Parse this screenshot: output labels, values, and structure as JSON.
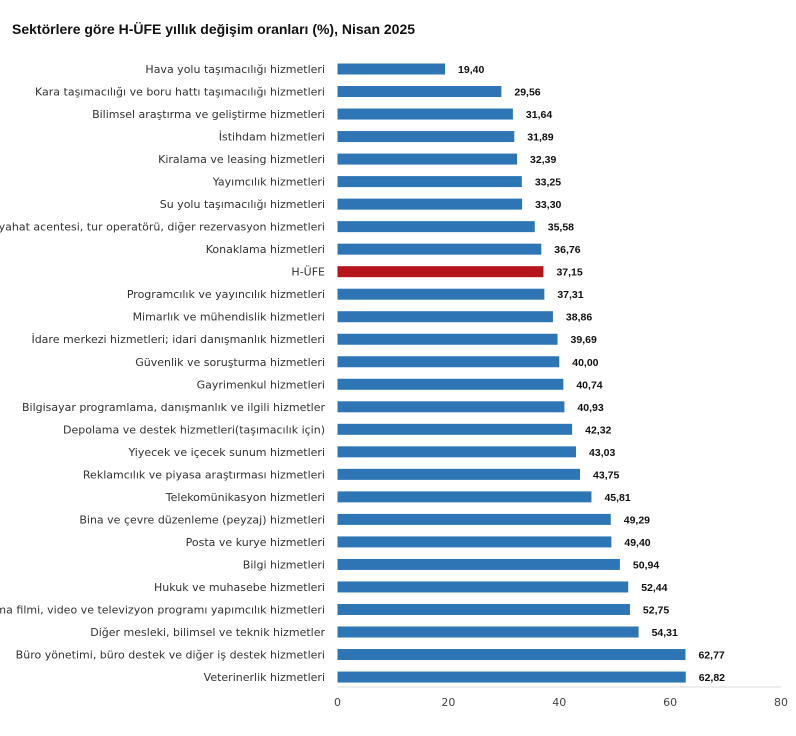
{
  "chart_data": {
    "type": "bar",
    "orientation": "horizontal",
    "title": "Sektörlere göre H-ÜFE yıllık değişim oranları (%), Nisan 2025",
    "xlabel": "",
    "ylabel": "",
    "xlim": [
      0,
      80
    ],
    "xticks": [
      "0",
      "20",
      "40",
      "60",
      "80"
    ],
    "grid": false,
    "legend": "none",
    "colors": {
      "bar": "#2e75b6",
      "highlight": "#b5151b"
    },
    "highlight_category": "H-ÜFE",
    "categories": [
      "Hava yolu taşımacılığı hizmetleri",
      "Kara taşımacılığı ve boru hattı taşımacılığı hizmetleri",
      "Bilimsel araştırma ve geliştirme hizmetleri",
      "İstihdam hizmetleri",
      "Kiralama ve leasing hizmetleri",
      "Yayımcılık hizmetleri",
      "Su yolu taşımacılığı hizmetleri",
      "Seyahat acentesi, tur operatörü, diğer rezervasyon hizmetleri",
      "Konaklama hizmetleri",
      "H-ÜFE",
      "Programcılık ve yayıncılık hizmetleri",
      "Mimarlık ve mühendislik hizmetleri",
      "İdare merkezi hizmetleri; idari danışmanlık hizmetleri",
      "Güvenlik ve soruşturma hizmetleri",
      "Gayrimenkul hizmetleri",
      "Bilgisayar programlama, danışmanlık ve ilgili hizmetler",
      "Depolama ve destek hizmetleri(taşımacılık için)",
      "Yiyecek ve içecek sunum hizmetleri",
      "Reklamcılık ve piyasa araştırması hizmetleri",
      "Telekomünikasyon hizmetleri",
      "Bina ve çevre düzenleme (peyzaj) hizmetleri",
      "Posta ve kurye hizmetleri",
      "Bilgi hizmetleri",
      "Hukuk ve muhasebe hizmetleri",
      "Sinema filmi, video ve televizyon programı yapımcılık hizmetleri",
      "Diğer mesleki, bilimsel ve teknik hizmetler",
      "Büro yönetimi, büro destek ve diğer iş destek hizmetleri",
      "Veterinerlik hizmetleri"
    ],
    "values": [
      19.4,
      29.56,
      31.64,
      31.89,
      32.39,
      33.25,
      33.3,
      35.58,
      36.76,
      37.15,
      37.31,
      38.86,
      39.69,
      40.0,
      40.74,
      40.93,
      42.32,
      43.03,
      43.75,
      45.81,
      49.29,
      49.4,
      50.94,
      52.44,
      52.75,
      54.31,
      62.77,
      62.82
    ],
    "value_labels": [
      "19,40",
      "29,56",
      "31,64",
      "31,89",
      "32,39",
      "33,25",
      "33,30",
      "35,58",
      "36,76",
      "37,15",
      "37,31",
      "38,86",
      "39,69",
      "40,00",
      "40,74",
      "40,93",
      "42,32",
      "43,03",
      "43,75",
      "45,81",
      "49,29",
      "49,40",
      "50,94",
      "52,44",
      "52,75",
      "54,31",
      "62,77",
      "62,82"
    ]
  }
}
